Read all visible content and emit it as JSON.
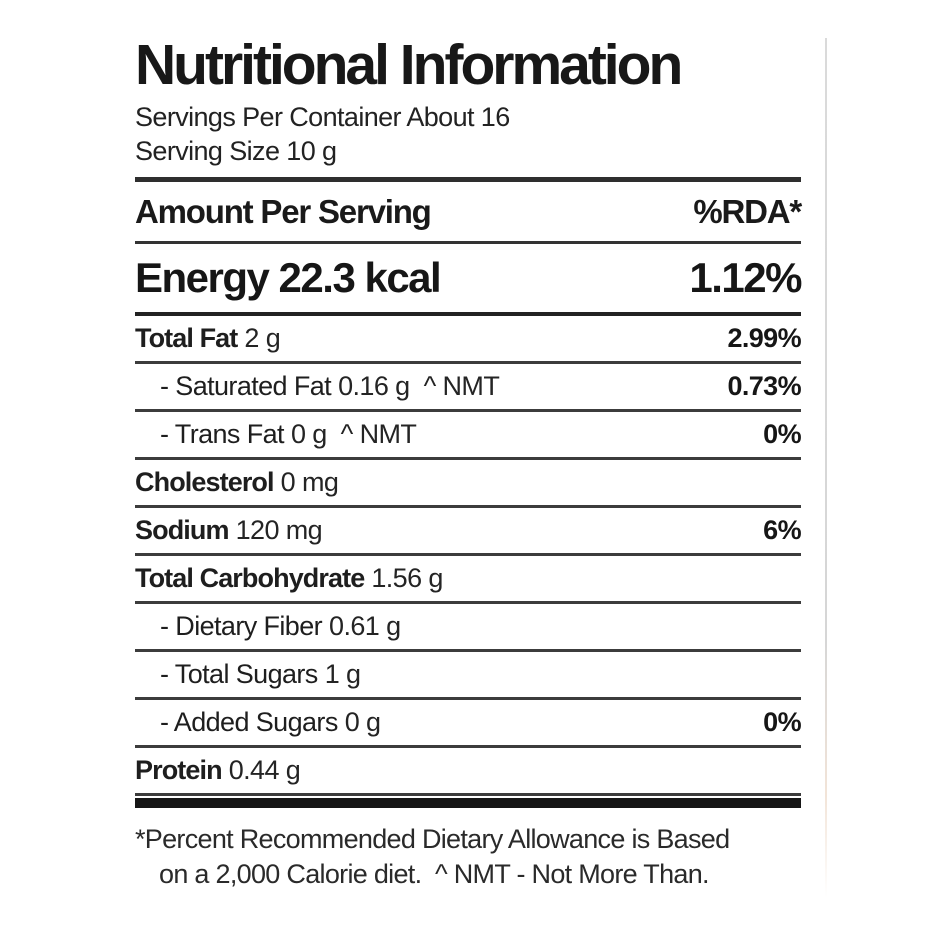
{
  "label": {
    "title": "Nutritional Information",
    "servings_per_container": "Servings Per Container About 16",
    "serving_size": "Serving Size 10 g",
    "header": {
      "left": "Amount Per Serving",
      "right": "%RDA*"
    },
    "energy": {
      "left": "Energy 22.3 kcal",
      "pct": "1.12%"
    },
    "rows": [
      {
        "name": "Total Fat",
        "amount": "2 g",
        "suffix": "",
        "pct": "2.99%"
      },
      {
        "name": "- Saturated Fat",
        "amount": "0.16 g",
        "suffix": "^ NMT",
        "pct": "0.73%"
      },
      {
        "name": "- Trans Fat",
        "amount": "0 g",
        "suffix": "^ NMT",
        "pct": "0%"
      },
      {
        "name": "Cholesterol",
        "amount": "0 mg",
        "suffix": "",
        "pct": ""
      },
      {
        "name": "Sodium",
        "amount": "120 mg",
        "suffix": "",
        "pct": "6%"
      },
      {
        "name": "Total Carbohydrate",
        "amount": "1.56 g",
        "suffix": "",
        "pct": ""
      },
      {
        "name": "- Dietary Fiber",
        "amount": "0.61 g",
        "suffix": "",
        "pct": ""
      },
      {
        "name": "- Total Sugars",
        "amount": "1 g",
        "suffix": "",
        "pct": ""
      },
      {
        "name": "- Added Sugars",
        "amount": "0 g",
        "suffix": "",
        "pct": "0%"
      },
      {
        "name": "Protein",
        "amount": "0.44 g",
        "suffix": "",
        "pct": ""
      }
    ],
    "footnote": {
      "line1": "*Percent Recommended Dietary Allowance is Based",
      "line2": "on a 2,000 Calorie diet.  ^ NMT - Not More Than."
    },
    "colors": {
      "text": "#1e1e1e",
      "rule": "#3c3c3c",
      "thick_bar": "#161616",
      "background": "#ffffff"
    }
  }
}
